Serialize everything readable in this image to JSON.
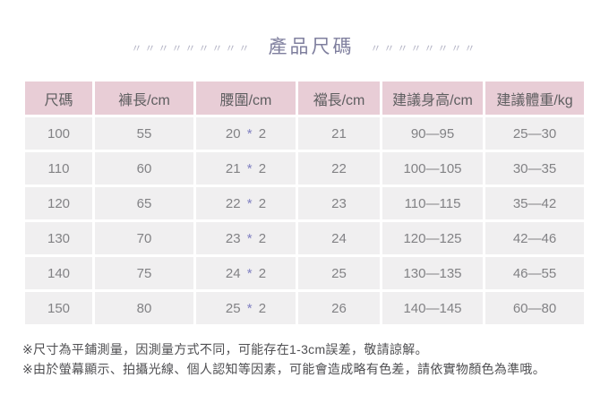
{
  "title": "產品尺碼",
  "decoration": {
    "left": "〃〃〃〃〃〃〃〃〃",
    "right": "〃〃〃〃〃〃〃〃"
  },
  "colors": {
    "header_bg": "#e8cdd6",
    "cell_bg": "#f0eff0",
    "title_text": "#7f7f9e",
    "deco_marks": "#b5b5c6",
    "cell_text": "#828285",
    "star_accent": "#8080c0",
    "note_text": "#4f4f52"
  },
  "table": {
    "headers": [
      "尺碼",
      "褲長/cm",
      "腰圍/cm",
      "襠長/cm",
      "建議身高/cm",
      "建議體重/kg"
    ],
    "waist_star": "*",
    "rows": [
      {
        "size": "100",
        "length": "55",
        "waist": "20",
        "waist_mult": "2",
        "crotch": "21",
        "height": "90—95",
        "weight": "25—30"
      },
      {
        "size": "110",
        "length": "60",
        "waist": "21",
        "waist_mult": "2",
        "crotch": "22",
        "height": "100—105",
        "weight": "30—35"
      },
      {
        "size": "120",
        "length": "65",
        "waist": "22",
        "waist_mult": "2",
        "crotch": "23",
        "height": "110—115",
        "weight": "35—42"
      },
      {
        "size": "130",
        "length": "70",
        "waist": "23",
        "waist_mult": "2",
        "crotch": "24",
        "height": "120—125",
        "weight": "42—46"
      },
      {
        "size": "140",
        "length": "75",
        "waist": "24",
        "waist_mult": "2",
        "crotch": "25",
        "height": "130—135",
        "weight": "46—55"
      },
      {
        "size": "150",
        "length": "80",
        "waist": "25",
        "waist_mult": "2",
        "crotch": "26",
        "height": "140—145",
        "weight": "60—80"
      }
    ]
  },
  "notes": [
    "※尺寸為平鋪測量，因測量方式不同，可能存在1-3cm誤差，敬請諒解。",
    "※由於螢幕顯示、拍攝光線、個人認知等因素，可能會造成略有色差，請依實物顏色為準哦。"
  ]
}
